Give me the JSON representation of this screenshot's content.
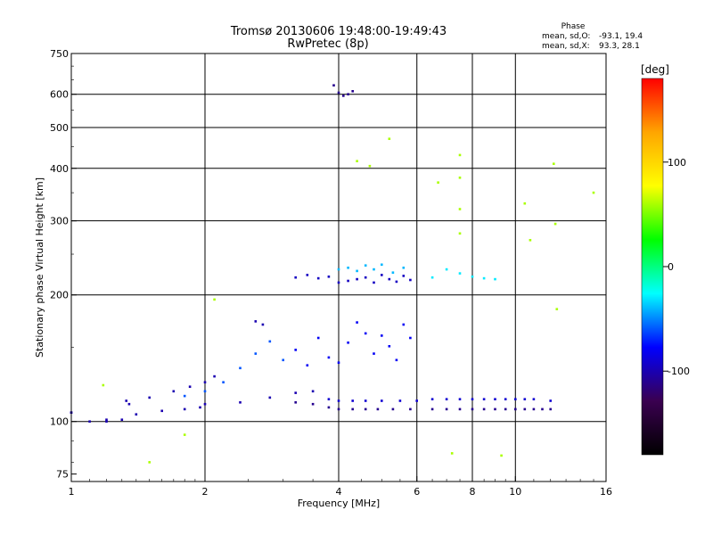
{
  "chart_data": {
    "type": "scatter",
    "title": "Tromsø 20130606 19:48:00-19:49:43",
    "subtitle": "RwPretec (8p)",
    "xlabel": "Frequency [MHz]",
    "ylabel": "Stationary phase Virtual Height [km]",
    "x_scale": "log2",
    "y_scale": "log",
    "xlim": [
      1,
      16
    ],
    "ylim": [
      72,
      750
    ],
    "x_ticks": [
      1,
      2,
      4,
      6,
      8,
      10,
      16
    ],
    "y_ticks": [
      75,
      100,
      200,
      300,
      400,
      500,
      600,
      750
    ],
    "x_gridlines": [
      2,
      4,
      6,
      8,
      10
    ],
    "y_gridlines": [
      100,
      200,
      300,
      400,
      500,
      600
    ],
    "grid": true,
    "stats": {
      "title": "Phase",
      "o_label": "mean, sd,O:",
      "o_values": "-93.1, 19.4",
      "x_label": "mean, sd,X:",
      "x_values": "93.3, 28.1"
    },
    "colorbar": {
      "label": "[deg]",
      "range": [
        -180,
        180
      ],
      "ticks": [
        100,
        0,
        -100
      ],
      "stops": [
        "#000000",
        "#3a0050",
        "#0000ff",
        "#00ffff",
        "#00ff00",
        "#ffff00",
        "#ffa500",
        "#ff0000"
      ]
    },
    "series": [
      {
        "x": [
          1.0,
          1.2,
          1.35
        ],
        "y": [
          105,
          101,
          110
        ],
        "phase": -100
      },
      {
        "x": [
          1.0,
          1.1,
          1.2,
          1.3,
          1.4,
          1.6,
          1.8,
          1.95,
          2.0,
          2.4,
          2.8,
          3.2,
          3.5
        ],
        "y": [
          105,
          100,
          100,
          101,
          104,
          106,
          107,
          108,
          110,
          111,
          114,
          117,
          118
        ],
        "phase": -100
      },
      {
        "x": [
          1.33,
          1.5,
          1.7,
          1.85,
          2.0,
          2.1
        ],
        "y": [
          112,
          114,
          118,
          121,
          124,
          128
        ],
        "phase": -100
      },
      {
        "x": [
          1.8,
          2.0,
          2.2,
          2.4,
          2.6,
          2.8,
          3.0
        ],
        "y": [
          115,
          118,
          124,
          134,
          145,
          155,
          140
        ],
        "phase": -60
      },
      {
        "x": [
          2.6,
          2.7
        ],
        "y": [
          173,
          170
        ],
        "phase": -100
      },
      {
        "x": [
          3.2,
          3.5,
          3.8,
          4.0,
          4.3,
          4.6,
          4.9,
          5.3,
          5.8,
          6.5,
          7.0,
          7.5,
          8.0,
          8.5,
          9.0,
          9.5,
          10.0,
          10.5,
          11.0,
          11.5,
          12.0
        ],
        "y": [
          111,
          110,
          108,
          107,
          107,
          107,
          107,
          107,
          107,
          107,
          107,
          107,
          107,
          107,
          107,
          107,
          107,
          107,
          107,
          107,
          107
        ],
        "phase": -110
      },
      {
        "x": [
          3.8,
          4.0,
          4.3,
          4.6,
          5.0,
          5.5,
          6.0,
          6.5,
          7.0,
          7.5,
          8.0,
          8.5,
          9.0,
          9.5,
          10.0,
          10.5,
          11.0,
          12.0
        ],
        "y": [
          113,
          112,
          112,
          112,
          112,
          112,
          112,
          113,
          113,
          113,
          113,
          113,
          113,
          113,
          113,
          113,
          113,
          112
        ],
        "phase": -90
      },
      {
        "x": [
          3.2,
          3.4,
          3.6,
          3.8,
          4.0,
          4.2,
          4.4,
          4.6,
          4.8,
          5.0,
          5.2,
          5.4,
          5.6,
          5.8
        ],
        "y": [
          148,
          136,
          158,
          142,
          138,
          154,
          172,
          162,
          145,
          160,
          151,
          140,
          170,
          158
        ],
        "phase": -80
      },
      {
        "x": [
          3.2,
          3.4,
          3.6,
          3.8,
          4.0,
          4.2,
          4.4,
          4.6,
          4.8,
          5.0,
          5.2,
          5.4,
          5.6,
          5.8
        ],
        "y": [
          220,
          223,
          219,
          221,
          214,
          216,
          218,
          220,
          214,
          223,
          218,
          215,
          222,
          217
        ],
        "phase": -95
      },
      {
        "x": [
          4.0,
          4.2,
          4.4,
          4.6,
          4.8,
          5.0,
          5.3,
          5.6
        ],
        "y": [
          230,
          232,
          228,
          235,
          230,
          236,
          226,
          232
        ],
        "phase": -40
      },
      {
        "x": [
          6.5,
          7.0,
          7.5,
          8.0,
          8.5,
          9.0
        ],
        "y": [
          220,
          230,
          225,
          221,
          219,
          218
        ],
        "phase": -30
      },
      {
        "x": [
          3.9,
          4.0,
          4.1,
          4.2,
          4.3
        ],
        "y": [
          630,
          605,
          595,
          600,
          610
        ],
        "phase": -110
      },
      {
        "x": [
          1.18,
          1.5,
          1.8,
          2.1,
          4.4,
          4.7,
          5.2,
          6.7,
          7.2,
          7.5,
          7.5,
          7.5,
          7.5,
          9.3,
          10.5,
          10.8,
          12.2,
          12.3,
          12.4,
          15.0
        ],
        "y": [
          122,
          80,
          93,
          195,
          416,
          405,
          470,
          370,
          84,
          430,
          380,
          320,
          280,
          83,
          330,
          270,
          410,
          295,
          185,
          350
        ],
        "phase": 60
      }
    ]
  }
}
